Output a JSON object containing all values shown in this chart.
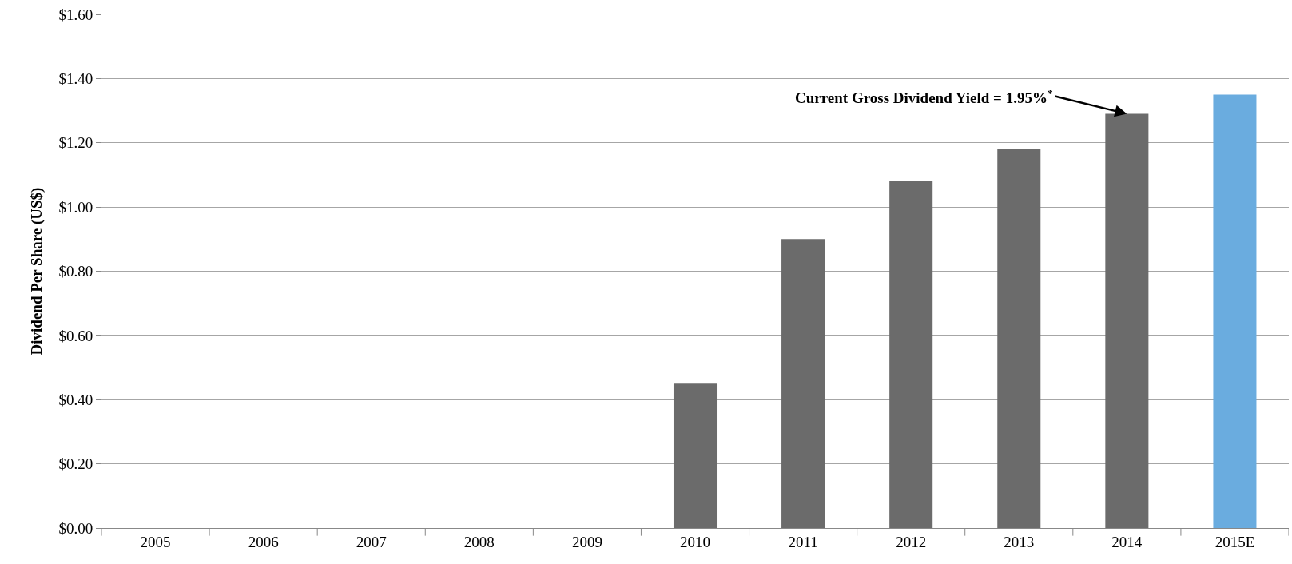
{
  "chart_data": {
    "type": "bar",
    "ylabel": "Dividend Per Share (US$)",
    "categories": [
      "2005",
      "2006",
      "2007",
      "2008",
      "2009",
      "2010",
      "2011",
      "2012",
      "2013",
      "2014",
      "2015E"
    ],
    "values": [
      null,
      null,
      null,
      null,
      null,
      0.45,
      0.9,
      1.08,
      1.18,
      1.29,
      1.35
    ],
    "colors": [
      "#6b6b6b",
      "#6b6b6b",
      "#6b6b6b",
      "#6b6b6b",
      "#6b6b6b",
      "#6b6b6b",
      "#6b6b6b",
      "#6b6b6b",
      "#6b6b6b",
      "#6b6b6b",
      "#6aacdf"
    ],
    "ylim": [
      0,
      1.6
    ],
    "yticks": [
      {
        "value": 0,
        "label": "$0.00"
      },
      {
        "value": 0.2,
        "label": "$0.20"
      },
      {
        "value": 0.4,
        "label": "$0.40"
      },
      {
        "value": 0.6,
        "label": "$0.60"
      },
      {
        "value": 0.8,
        "label": "$0.80"
      },
      {
        "value": 1.0,
        "label": "$1.00"
      },
      {
        "value": 1.2,
        "label": "$1.20"
      },
      {
        "value": 1.4,
        "label": "$1.40"
      },
      {
        "value": 1.6,
        "label": "$1.60"
      }
    ],
    "grid": "y",
    "legend": false,
    "annotations": [
      {
        "text": "Current Gross Dividend Yield = 1.95%$^{*}$",
        "x": "2014",
        "y": 1.29
      }
    ]
  }
}
